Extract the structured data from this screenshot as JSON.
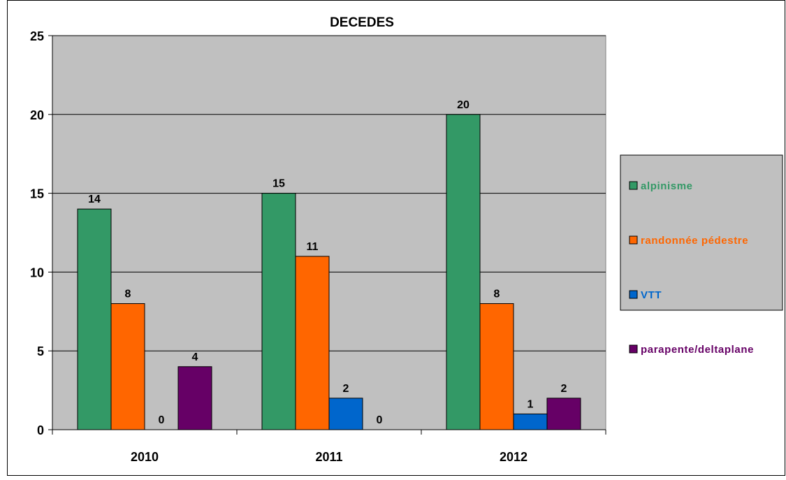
{
  "chart_data": {
    "type": "bar",
    "title": "DECEDES",
    "categories": [
      "2010",
      "2011",
      "2012"
    ],
    "series": [
      {
        "name": "alpinisme",
        "values": [
          14,
          15,
          20
        ],
        "color": "#339966"
      },
      {
        "name": "randonnée pédestre",
        "values": [
          8,
          11,
          8
        ],
        "color": "#ff6600"
      },
      {
        "name": "VTT",
        "values": [
          0,
          2,
          1
        ],
        "color": "#0066cc"
      },
      {
        "name": "parapente/deltaplane",
        "values": [
          4,
          0,
          2
        ],
        "color": "#660066"
      }
    ],
    "ylim": [
      0,
      25
    ],
    "yticks": [
      0,
      5,
      10,
      15,
      20,
      25
    ],
    "grid": true,
    "legend": "right",
    "plot_background": "#c0c0c0"
  }
}
